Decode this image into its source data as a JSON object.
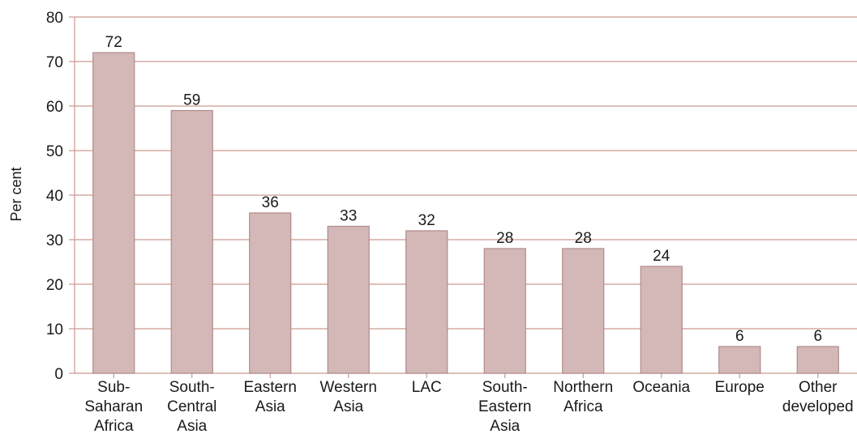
{
  "chart_data": {
    "type": "bar",
    "title": "",
    "xlabel": "",
    "ylabel": "Per cent",
    "ylim": [
      0,
      80
    ],
    "yticks": [
      0,
      10,
      20,
      30,
      40,
      50,
      60,
      70,
      80
    ],
    "grid": true,
    "categories": [
      [
        "Sub-",
        "Saharan",
        "Africa"
      ],
      [
        "South-",
        "Central",
        "Asia"
      ],
      [
        "Eastern",
        "Asia"
      ],
      [
        "Western",
        "Asia"
      ],
      [
        "LAC"
      ],
      [
        "South-",
        "Eastern",
        "Asia"
      ],
      [
        "Northern",
        "Africa"
      ],
      [
        "Oceania"
      ],
      [
        "Europe"
      ],
      [
        "Other",
        "developed"
      ]
    ],
    "values": [
      72,
      59,
      36,
      33,
      32,
      28,
      28,
      24,
      6,
      6
    ],
    "colors": {
      "bar_fill": "#d4b8b8",
      "bar_stroke": "#b08a8a",
      "grid": "#c99a8f",
      "axis": "#c99a8f"
    }
  }
}
